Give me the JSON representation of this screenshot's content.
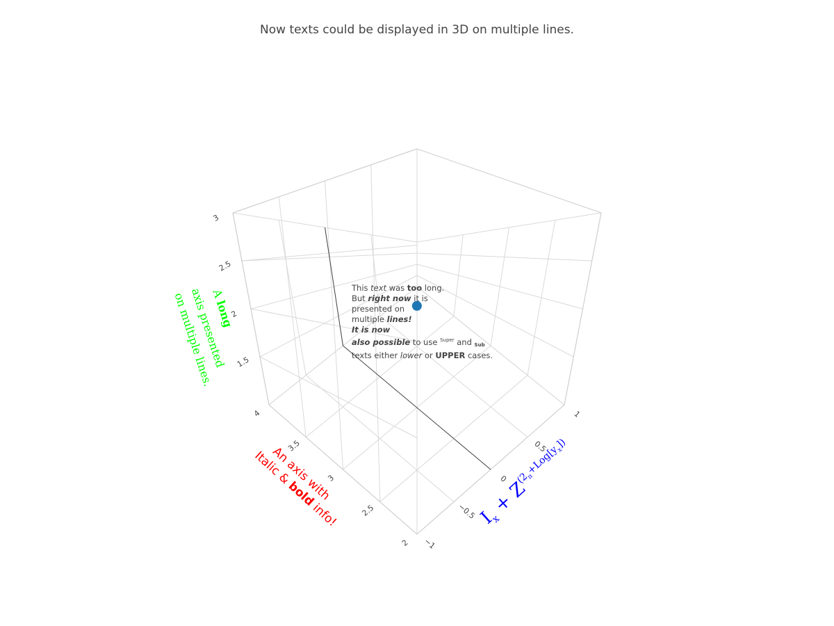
{
  "title": "Now texts could be displayed in 3D on multiple lines.",
  "chart_data": {
    "type": "scatter3d",
    "x": [
      0
    ],
    "y": [
      3
    ],
    "z": [
      2
    ],
    "marker_color": "#1f77b4",
    "xaxis": {
      "title_parts": [
        "I",
        "x",
        " + Z",
        "(2",
        "π",
        "+Log[y",
        "x",
        "])"
      ],
      "title_color": "#0000ff",
      "range": [
        -1,
        1
      ],
      "tickvals": [
        -1,
        -0.5,
        0,
        0.5,
        1
      ],
      "ticktext": [
        "−1",
        "−0.5",
        "0",
        "0.5",
        "1"
      ]
    },
    "yaxis": {
      "title_lines": [
        [
          "An axis with",
          ""
        ],
        [
          "Italic & ",
          "bold",
          " info!"
        ]
      ],
      "title_color": "#ff0000",
      "range": [
        2,
        4
      ],
      "tickvals": [
        2,
        2.5,
        3,
        3.5,
        4
      ],
      "ticktext": [
        "2",
        "2.5",
        "3",
        "3.5",
        "4"
      ]
    },
    "zaxis": {
      "title_lines": [
        [
          "A ",
          "long"
        ],
        [
          "axis presented"
        ],
        [
          "on multiple lines."
        ]
      ],
      "title_color": "#00ff00",
      "range": [
        1,
        3
      ],
      "tickvals": [
        1.5,
        2,
        2.5,
        3
      ],
      "ticktext": [
        "1.5",
        "2",
        "2.5",
        "3"
      ]
    },
    "annotation": {
      "lines": [
        [
          [
            "This ",
            ""
          ],
          [
            "text",
            "i"
          ],
          [
            " was ",
            ""
          ],
          [
            "too",
            "b"
          ],
          [
            " long.",
            ""
          ]
        ],
        [
          [
            "But ",
            ""
          ],
          [
            "right now",
            "bi"
          ],
          [
            " it is",
            ""
          ]
        ],
        [
          [
            "presented on",
            ""
          ]
        ],
        [
          [
            "multiple ",
            ""
          ],
          [
            "lines!",
            "bi"
          ]
        ],
        [
          [
            "It is now",
            "bi"
          ]
        ],
        [
          [
            "also possible",
            "bi"
          ],
          [
            " to use ",
            ""
          ],
          [
            "Super",
            "sup"
          ],
          [
            " and ",
            ""
          ],
          [
            "Sub",
            "sub"
          ]
        ],
        [
          [
            "texts either ",
            ""
          ],
          [
            "lower",
            "i"
          ],
          [
            " or ",
            ""
          ],
          [
            "UPPER",
            "b"
          ],
          [
            " cases.",
            ""
          ]
        ]
      ]
    }
  }
}
